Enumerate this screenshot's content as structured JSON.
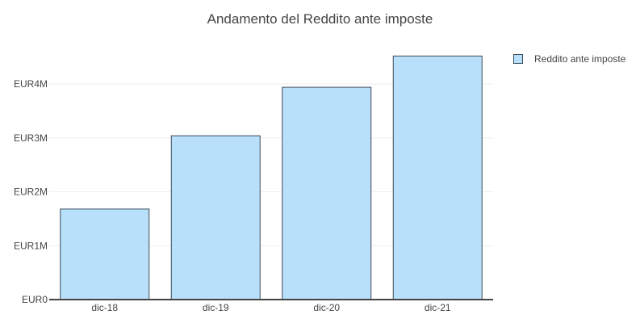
{
  "chart_data": {
    "type": "bar",
    "title": "Andamento del Reddito ante imposte",
    "categories": [
      "dic-18",
      "dic-19",
      "dic-20",
      "dic-21"
    ],
    "series": [
      {
        "name": "Reddito ante imposte",
        "values": [
          1.68,
          3.04,
          3.94,
          4.52
        ]
      }
    ],
    "value_unit": "millions of EUR",
    "y_ticks": [
      0,
      1,
      2,
      3,
      4
    ],
    "y_tick_labels": [
      "EUR0",
      "EUR1M",
      "EUR2M",
      "EUR3M",
      "EUR4M"
    ],
    "ylim": [
      0,
      4.9
    ],
    "grid": true,
    "legend_position": "top-right",
    "bar_fill": "#b9e0fa",
    "bar_stroke": "#3b4a5a"
  }
}
